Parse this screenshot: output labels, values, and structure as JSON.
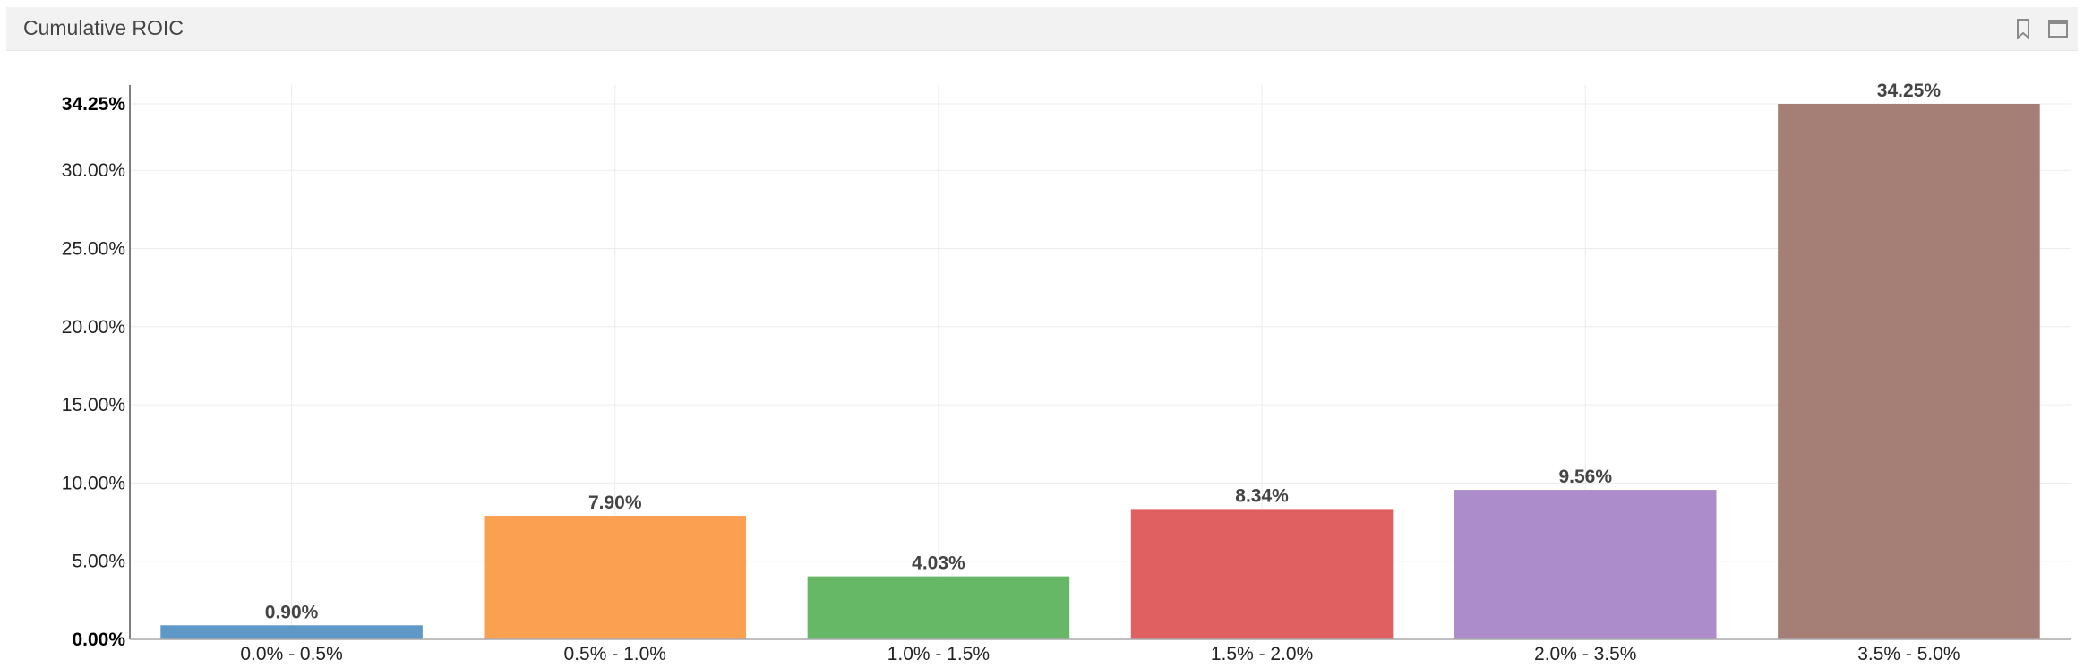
{
  "panel": {
    "title": "Cumulative ROIC",
    "icons": [
      "bookmark-icon",
      "maximize-icon"
    ]
  },
  "chart_data": {
    "type": "bar",
    "title": "",
    "xlabel": "",
    "ylabel": "",
    "categories": [
      "0.0% - 0.5%",
      "0.5% - 1.0%",
      "1.0% - 1.5%",
      "1.5% - 2.0%",
      "2.0% - 3.5%",
      "3.5% - 5.0%"
    ],
    "values": [
      0.9,
      7.9,
      4.03,
      8.34,
      9.56,
      34.25
    ],
    "data_labels": [
      "0.90%",
      "7.90%",
      "4.03%",
      "8.34%",
      "9.56%",
      "34.25%"
    ],
    "colors": [
      "#5f98c6",
      "#fb9f50",
      "#66b866",
      "#e05f60",
      "#ad8ccb",
      "#a57e76"
    ],
    "ylim": [
      0,
      34.25
    ],
    "yticks": [
      0,
      5,
      10,
      15,
      20,
      25,
      30,
      34.25
    ],
    "ytick_labels": [
      "0.00%",
      "5.00%",
      "10.00%",
      "15.00%",
      "20.00%",
      "25.00%",
      "30.00%",
      "34.25%"
    ],
    "grid": true,
    "legend": "none"
  }
}
